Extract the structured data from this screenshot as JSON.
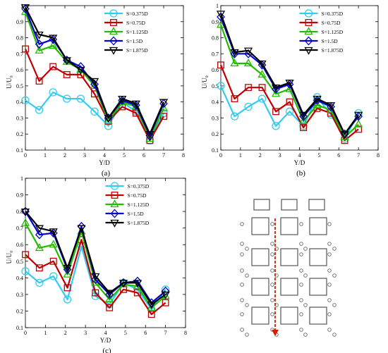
{
  "chart_data": [
    {
      "type": "line",
      "panel_label": "(a)",
      "xlabel": "Y/D",
      "ylabel": "U/U₀",
      "xlim": [
        0,
        8
      ],
      "ylim": [
        0.1,
        1.0
      ],
      "xticks": [
        "0",
        "1",
        "2",
        "3",
        "4",
        "5",
        "6",
        "7",
        "8"
      ],
      "yticks": [
        "0.1",
        "0.2",
        "0.3",
        "0.4",
        "0.5",
        "0.6",
        "0.7",
        "0.8",
        "0.9",
        "1"
      ],
      "legend_position": "top-right",
      "x": [
        0,
        0.7,
        1.4,
        2.1,
        2.8,
        3.5,
        4.2,
        4.9,
        5.6,
        6.3,
        7.0
      ],
      "series": [
        {
          "name": "S=0.375D",
          "color": "#33ccee",
          "marker": "circle",
          "values": [
            0.41,
            0.35,
            0.46,
            0.42,
            0.42,
            0.34,
            0.25,
            0.4,
            0.34,
            0.16,
            0.33
          ]
        },
        {
          "name": "S=0.75D",
          "color": "#c00000",
          "marker": "square",
          "values": [
            0.73,
            0.53,
            0.62,
            0.57,
            0.57,
            0.45,
            0.28,
            0.37,
            0.33,
            0.16,
            0.31
          ]
        },
        {
          "name": "S=1.125D",
          "color": "#22bb00",
          "marker": "triangle-up",
          "values": [
            0.96,
            0.72,
            0.75,
            0.65,
            0.6,
            0.5,
            0.28,
            0.4,
            0.37,
            0.17,
            0.36
          ]
        },
        {
          "name": "S=1.5D",
          "color": "#0000cc",
          "marker": "diamond",
          "values": [
            0.98,
            0.76,
            0.79,
            0.66,
            0.62,
            0.51,
            0.3,
            0.41,
            0.38,
            0.19,
            0.39
          ]
        },
        {
          "name": "S=1.875D",
          "color": "#000000",
          "marker": "triangle-down",
          "values": [
            0.99,
            0.82,
            0.8,
            0.66,
            0.6,
            0.53,
            0.3,
            0.42,
            0.39,
            0.2,
            0.4
          ]
        }
      ]
    },
    {
      "type": "line",
      "panel_label": "(b)",
      "xlabel": "Y/D",
      "ylabel": "U/U₀",
      "xlim": [
        0,
        8
      ],
      "ylim": [
        0.1,
        1.0
      ],
      "xticks": [
        "0",
        "1",
        "2",
        "3",
        "4",
        "5",
        "6",
        "7",
        "8"
      ],
      "yticks": [
        "0.1",
        "0.2",
        "0.3",
        "0.4",
        "0.5",
        "0.6",
        "0.7",
        "0.8",
        "0.9",
        "1"
      ],
      "legend_position": "top-right",
      "x": [
        0,
        0.7,
        1.4,
        2.1,
        2.8,
        3.5,
        4.2,
        4.9,
        5.6,
        6.3,
        7.0
      ],
      "series": [
        {
          "name": "S=0.375D",
          "color": "#33ccee",
          "marker": "circle",
          "values": [
            0.5,
            0.31,
            0.37,
            0.42,
            0.25,
            0.34,
            0.25,
            0.43,
            0.32,
            0.17,
            0.33
          ]
        },
        {
          "name": "S=0.75D",
          "color": "#c00000",
          "marker": "square",
          "values": [
            0.63,
            0.42,
            0.49,
            0.49,
            0.34,
            0.4,
            0.24,
            0.36,
            0.33,
            0.16,
            0.23
          ]
        },
        {
          "name": "S=1.125D",
          "color": "#22bb00",
          "marker": "triangle-up",
          "values": [
            0.88,
            0.64,
            0.64,
            0.57,
            0.45,
            0.48,
            0.28,
            0.38,
            0.35,
            0.18,
            0.26
          ]
        },
        {
          "name": "S=1.5D",
          "color": "#0000cc",
          "marker": "diamond",
          "values": [
            0.93,
            0.7,
            0.7,
            0.63,
            0.48,
            0.51,
            0.31,
            0.41,
            0.37,
            0.2,
            0.31
          ]
        },
        {
          "name": "S=1.875D",
          "color": "#000000",
          "marker": "triangle-down",
          "values": [
            0.95,
            0.71,
            0.72,
            0.64,
            0.49,
            0.52,
            0.32,
            0.42,
            0.38,
            0.2,
            0.32
          ]
        }
      ]
    },
    {
      "type": "line",
      "panel_label": "(c)",
      "xlabel": "Y/D",
      "ylabel": "U/U₀",
      "xlim": [
        0,
        8
      ],
      "ylim": [
        0.1,
        1.0
      ],
      "xticks": [
        "0",
        "1",
        "2",
        "3",
        "4",
        "5",
        "6",
        "7",
        "8"
      ],
      "yticks": [
        "0.1",
        "0.2",
        "0.3",
        "0.4",
        "0.5",
        "0.6",
        "0.7",
        "0.8",
        "0.9",
        "1"
      ],
      "legend_position": "top-right",
      "x": [
        0,
        0.7,
        1.4,
        2.1,
        2.8,
        3.5,
        4.2,
        4.9,
        5.6,
        6.3,
        7.0
      ],
      "series": [
        {
          "name": "S=0.375D",
          "color": "#33ccee",
          "marker": "circle",
          "values": [
            0.44,
            0.37,
            0.41,
            0.27,
            0.59,
            0.29,
            0.24,
            0.37,
            0.33,
            0.21,
            0.33
          ]
        },
        {
          "name": "S=0.75D",
          "color": "#c00000",
          "marker": "square",
          "values": [
            0.54,
            0.46,
            0.5,
            0.34,
            0.63,
            0.31,
            0.22,
            0.33,
            0.31,
            0.18,
            0.25
          ]
        },
        {
          "name": "S=1.125D",
          "color": "#22bb00",
          "marker": "triangle-up",
          "values": [
            0.73,
            0.58,
            0.6,
            0.42,
            0.68,
            0.37,
            0.27,
            0.36,
            0.35,
            0.22,
            0.29
          ]
        },
        {
          "name": "S=1.5D",
          "color": "#0000cc",
          "marker": "diamond",
          "values": [
            0.8,
            0.66,
            0.67,
            0.45,
            0.71,
            0.39,
            0.3,
            0.37,
            0.38,
            0.25,
            0.32
          ]
        },
        {
          "name": "S=1.875D",
          "color": "#000000",
          "marker": "triangle-down",
          "values": [
            0.8,
            0.7,
            0.68,
            0.46,
            0.7,
            0.41,
            0.31,
            0.37,
            0.37,
            0.24,
            0.3
          ]
        }
      ]
    }
  ],
  "schematic": {
    "top_square_count": 3,
    "grid_rows": 4,
    "grid_cols": 3,
    "arrow_color": "#cc2200"
  }
}
